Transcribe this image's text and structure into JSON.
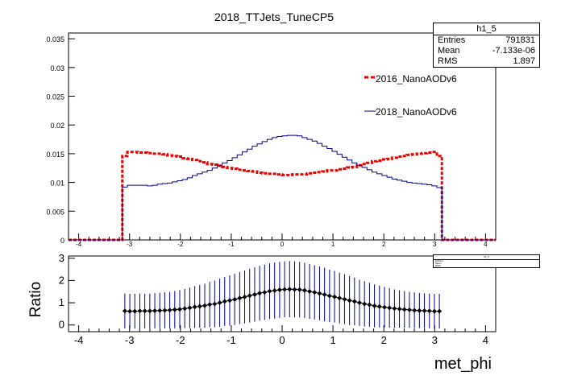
{
  "title": "2018_TTJets_TuneCP5",
  "stats": {
    "name": "h1_5",
    "rows": [
      {
        "label": "Entries",
        "value": "791831"
      },
      {
        "label": "Mean",
        "value": "-7.133e-06"
      },
      {
        "label": "RMS",
        "value": "1.897"
      }
    ]
  },
  "colors": {
    "series_2016": "#ee0000",
    "series_2018": "#00008b",
    "ratio": "#000000",
    "ratio_err": "#00008b"
  },
  "chart_data": [
    {
      "type": "line",
      "xlim": [
        -4.2,
        4.2
      ],
      "ylim": [
        0,
        0.036
      ],
      "x_ticks": [
        -4,
        -3,
        -2,
        -1,
        0,
        1,
        2,
        3,
        4
      ],
      "y_ticks": [
        "0",
        "0.005",
        "0.01",
        "0.015",
        "0.02",
        "0.025",
        "0.03",
        "0.035"
      ],
      "y_tick_values": [
        0,
        0.005,
        0.01,
        0.015,
        0.02,
        0.025,
        0.03,
        0.035
      ],
      "x_range": [
        -3.1416,
        3.1416
      ],
      "bins": 64,
      "series": [
        {
          "name": "2016_NanoAODv6",
          "style": "dashed",
          "values": [
            0.0146,
            0.0153,
            0.0153,
            0.0152,
            0.0152,
            0.0151,
            0.015,
            0.015,
            0.0149,
            0.0147,
            0.0146,
            0.0145,
            0.0142,
            0.0141,
            0.0139,
            0.0137,
            0.0135,
            0.0132,
            0.0131,
            0.0129,
            0.0127,
            0.0125,
            0.0124,
            0.0122,
            0.0121,
            0.012,
            0.0119,
            0.0117,
            0.0116,
            0.0115,
            0.0115,
            0.0114,
            0.0113,
            0.0113,
            0.0114,
            0.0114,
            0.0114,
            0.0116,
            0.0117,
            0.0118,
            0.0119,
            0.0121,
            0.0121,
            0.0123,
            0.0124,
            0.0126,
            0.0127,
            0.013,
            0.0132,
            0.0134,
            0.0137,
            0.0138,
            0.014,
            0.0141,
            0.0143,
            0.0145,
            0.0146,
            0.0148,
            0.0149,
            0.015,
            0.0151,
            0.0152,
            0.0153,
            0.0146
          ]
        },
        {
          "name": "2018_NanoAODv6",
          "style": "solid",
          "values": [
            0.0092,
            0.0095,
            0.0095,
            0.0095,
            0.0095,
            0.0094,
            0.0095,
            0.0097,
            0.0098,
            0.0099,
            0.0101,
            0.0103,
            0.0105,
            0.0108,
            0.0112,
            0.0115,
            0.0118,
            0.0121,
            0.0125,
            0.0129,
            0.0134,
            0.0138,
            0.0143,
            0.0148,
            0.0153,
            0.0158,
            0.0163,
            0.0167,
            0.0171,
            0.0175,
            0.0178,
            0.018,
            0.0181,
            0.0182,
            0.0182,
            0.0181,
            0.0178,
            0.0175,
            0.0172,
            0.0168,
            0.0163,
            0.0159,
            0.0154,
            0.0149,
            0.0144,
            0.0139,
            0.0134,
            0.013,
            0.0126,
            0.0122,
            0.0118,
            0.0115,
            0.0112,
            0.0109,
            0.0106,
            0.0104,
            0.0102,
            0.01,
            0.0099,
            0.0098,
            0.0097,
            0.0096,
            0.0094,
            0.0091
          ]
        }
      ]
    },
    {
      "type": "scatter",
      "ylabel": "Ratio",
      "xlabel": "met_phi",
      "xlim": [
        -4.2,
        4.2
      ],
      "ylim": [
        -0.3,
        3.1
      ],
      "x_ticks": [
        -4,
        -3,
        -2,
        -1,
        0,
        1,
        2,
        3,
        4
      ],
      "y_ticks": [
        "0",
        "1",
        "2",
        "3"
      ],
      "y_tick_values": [
        0,
        1,
        2,
        3
      ],
      "x_range": [
        -3.1416,
        3.1416
      ],
      "bins": 64,
      "series": [
        {
          "values": [
            0.63,
            0.62,
            0.62,
            0.63,
            0.63,
            0.63,
            0.64,
            0.65,
            0.66,
            0.67,
            0.69,
            0.71,
            0.74,
            0.77,
            0.81,
            0.84,
            0.87,
            0.92,
            0.95,
            1.0,
            1.06,
            1.1,
            1.15,
            1.21,
            1.26,
            1.32,
            1.37,
            1.43,
            1.47,
            1.52,
            1.55,
            1.58,
            1.6,
            1.61,
            1.6,
            1.59,
            1.56,
            1.51,
            1.47,
            1.42,
            1.37,
            1.31,
            1.27,
            1.21,
            1.16,
            1.1,
            1.06,
            1.0,
            0.95,
            0.91,
            0.86,
            0.83,
            0.8,
            0.77,
            0.74,
            0.72,
            0.7,
            0.68,
            0.66,
            0.65,
            0.64,
            0.63,
            0.62,
            0.62
          ],
          "errors": [
            0.78,
            0.78,
            0.78,
            0.78,
            0.78,
            0.78,
            0.79,
            0.8,
            0.81,
            0.82,
            0.84,
            0.86,
            0.88,
            0.91,
            0.94,
            0.96,
            0.99,
            1.02,
            1.05,
            1.08,
            1.1,
            1.13,
            1.15,
            1.17,
            1.19,
            1.21,
            1.22,
            1.23,
            1.24,
            1.25,
            1.26,
            1.26,
            1.26,
            1.26,
            1.26,
            1.25,
            1.24,
            1.23,
            1.22,
            1.21,
            1.2,
            1.18,
            1.16,
            1.14,
            1.12,
            1.1,
            1.07,
            1.04,
            1.02,
            0.99,
            0.96,
            0.94,
            0.91,
            0.89,
            0.86,
            0.84,
            0.82,
            0.81,
            0.8,
            0.79,
            0.78,
            0.78,
            0.78,
            0.78
          ]
        }
      ]
    }
  ]
}
